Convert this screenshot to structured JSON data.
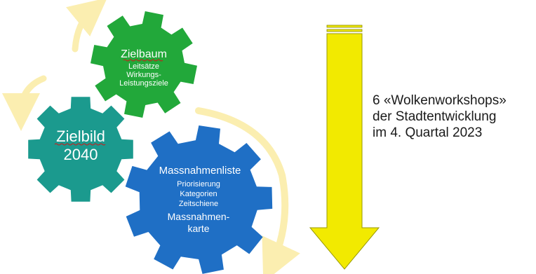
{
  "gears": {
    "zielbaum": {
      "title": "Zielbaum",
      "lines": [
        "Leitsätze",
        "Wirkungs-",
        "Leistungsziele"
      ],
      "color": "#22a83a"
    },
    "zielbild": {
      "title": "Zielbild",
      "subtitle": "2040",
      "color": "#1b9a8e"
    },
    "massnahmen": {
      "title": "Massnahmenliste",
      "lines": [
        "Priorisierung",
        "Kategorien",
        "Zeitschiene"
      ],
      "footer_line1": "Massnahmen-",
      "footer_line2": "karte",
      "color": "#1f6fc5"
    }
  },
  "arrow": {
    "color": "#f2ea00"
  },
  "cycle_arrows": {
    "color": "#fbeeb0"
  },
  "side_text": {
    "line1": "6 «Wolkenworkshops»",
    "line2": "der Stadtentwicklung",
    "line3": "im 4. Quartal 2023"
  }
}
